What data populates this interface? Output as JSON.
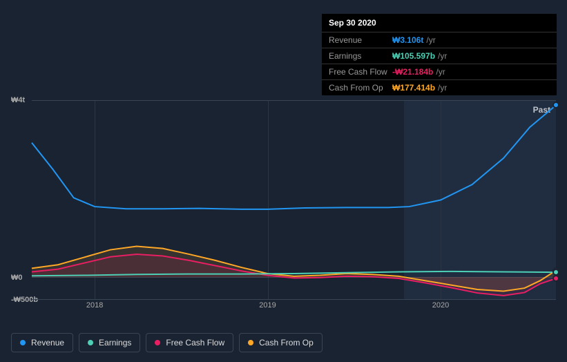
{
  "tooltip": {
    "date": "Sep 30 2020",
    "unit": "/yr",
    "rows": [
      {
        "label": "Revenue",
        "value": "₩3.106t",
        "color": "#2196f3"
      },
      {
        "label": "Earnings",
        "value": "₩105.597b",
        "color": "#4dd0b5"
      },
      {
        "label": "Free Cash Flow",
        "value": "-₩21.184b",
        "color": "#e91e63"
      },
      {
        "label": "Cash From Op",
        "value": "₩177.414b",
        "color": "#ffa726"
      }
    ]
  },
  "chart": {
    "type": "line",
    "background_color": "#1a2332",
    "grid_color": "#3a4555",
    "text_color": "#aaa",
    "past_label": "Past",
    "y_ticks": [
      {
        "label": "₩4t",
        "value": 4000
      },
      {
        "label": "₩0",
        "value": 0
      },
      {
        "label": "-₩500b",
        "value": -500
      }
    ],
    "ylim": [
      -500,
      4000
    ],
    "x_ticks": [
      "2018",
      "2019",
      "2020"
    ],
    "x_positions": [
      0.12,
      0.45,
      0.78
    ],
    "highlight": {
      "start": 0.71,
      "end": 1.0
    },
    "series": [
      {
        "name": "Revenue",
        "color": "#2196f3",
        "line_width": 2,
        "fill_opacity": 0,
        "points": [
          [
            0.0,
            3050
          ],
          [
            0.04,
            2450
          ],
          [
            0.08,
            1800
          ],
          [
            0.12,
            1600
          ],
          [
            0.18,
            1550
          ],
          [
            0.25,
            1550
          ],
          [
            0.32,
            1560
          ],
          [
            0.4,
            1540
          ],
          [
            0.45,
            1540
          ],
          [
            0.52,
            1570
          ],
          [
            0.6,
            1580
          ],
          [
            0.68,
            1580
          ],
          [
            0.72,
            1600
          ],
          [
            0.78,
            1750
          ],
          [
            0.84,
            2100
          ],
          [
            0.9,
            2700
          ],
          [
            0.95,
            3400
          ],
          [
            1.0,
            3900
          ]
        ]
      },
      {
        "name": "Cash From Op",
        "color": "#ffa726",
        "line_width": 2,
        "fill_opacity": 0.12,
        "points": [
          [
            0.0,
            200
          ],
          [
            0.05,
            280
          ],
          [
            0.1,
            450
          ],
          [
            0.15,
            620
          ],
          [
            0.2,
            700
          ],
          [
            0.25,
            650
          ],
          [
            0.3,
            520
          ],
          [
            0.35,
            380
          ],
          [
            0.4,
            220
          ],
          [
            0.45,
            80
          ],
          [
            0.5,
            20
          ],
          [
            0.55,
            40
          ],
          [
            0.6,
            80
          ],
          [
            0.65,
            60
          ],
          [
            0.7,
            20
          ],
          [
            0.75,
            -80
          ],
          [
            0.8,
            -180
          ],
          [
            0.85,
            -280
          ],
          [
            0.9,
            -320
          ],
          [
            0.94,
            -250
          ],
          [
            0.97,
            -80
          ],
          [
            1.0,
            150
          ]
        ]
      },
      {
        "name": "Free Cash Flow",
        "color": "#e91e63",
        "line_width": 2,
        "fill_opacity": 0.12,
        "points": [
          [
            0.0,
            120
          ],
          [
            0.05,
            180
          ],
          [
            0.1,
            320
          ],
          [
            0.15,
            460
          ],
          [
            0.2,
            520
          ],
          [
            0.25,
            480
          ],
          [
            0.3,
            380
          ],
          [
            0.35,
            260
          ],
          [
            0.4,
            140
          ],
          [
            0.45,
            40
          ],
          [
            0.5,
            -20
          ],
          [
            0.55,
            -10
          ],
          [
            0.6,
            20
          ],
          [
            0.65,
            10
          ],
          [
            0.7,
            -30
          ],
          [
            0.75,
            -130
          ],
          [
            0.8,
            -240
          ],
          [
            0.85,
            -360
          ],
          [
            0.9,
            -420
          ],
          [
            0.94,
            -350
          ],
          [
            0.97,
            -150
          ],
          [
            1.0,
            -30
          ]
        ]
      },
      {
        "name": "Earnings",
        "color": "#4dd0b5",
        "line_width": 2,
        "fill_opacity": 0,
        "points": [
          [
            0.0,
            30
          ],
          [
            0.1,
            40
          ],
          [
            0.2,
            60
          ],
          [
            0.3,
            70
          ],
          [
            0.4,
            70
          ],
          [
            0.5,
            80
          ],
          [
            0.6,
            100
          ],
          [
            0.7,
            120
          ],
          [
            0.8,
            130
          ],
          [
            0.9,
            120
          ],
          [
            1.0,
            110
          ]
        ]
      }
    ]
  },
  "legend": [
    {
      "label": "Revenue",
      "color": "#2196f3"
    },
    {
      "label": "Earnings",
      "color": "#4dd0b5"
    },
    {
      "label": "Free Cash Flow",
      "color": "#e91e63"
    },
    {
      "label": "Cash From Op",
      "color": "#ffa726"
    }
  ]
}
